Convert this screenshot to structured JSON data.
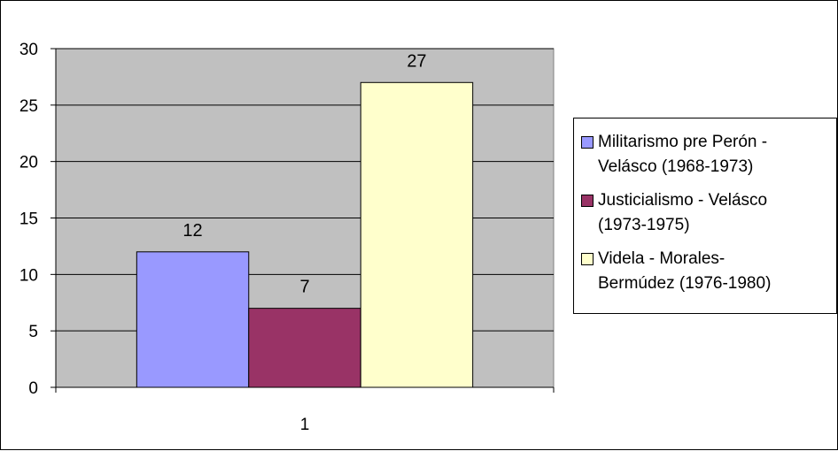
{
  "chart_data": {
    "type": "bar",
    "categories": [
      "1"
    ],
    "series": [
      {
        "name": "Militarismo pre Perón - Velásco (1968-1973)",
        "values": [
          12
        ],
        "color": "#9999ff",
        "legend_lines": [
          "Militarismo pre Perón -",
          "Velásco (1968-1973)"
        ]
      },
      {
        "name": "Justicialismo - Velásco (1973-1975)",
        "values": [
          7
        ],
        "color": "#993366",
        "legend_lines": [
          "Justicialismo - Velásco",
          "(1973-1975)"
        ]
      },
      {
        "name": "Videla - Morales-Bermúdez (1976-1980)",
        "values": [
          27
        ],
        "color": "#ffffcc",
        "legend_lines": [
          "Videla - Morales-",
          "Bermúdez (1976-1980)"
        ]
      }
    ],
    "y_ticks": [
      "0",
      "5",
      "10",
      "15",
      "20",
      "25",
      "30"
    ],
    "ylim": [
      0,
      30
    ],
    "grid": true,
    "plot_background": "#c0c0c0",
    "legend_position": "right",
    "title": "",
    "xlabel": "",
    "ylabel": ""
  }
}
